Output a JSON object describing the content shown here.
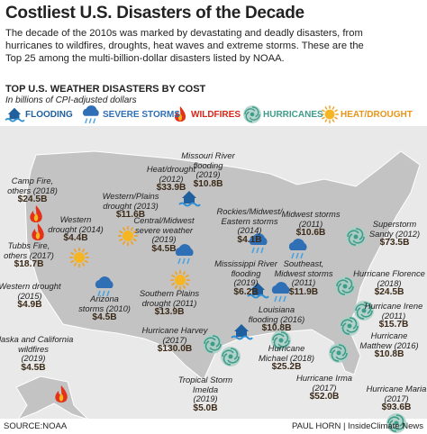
{
  "header": {
    "title": "Costliest U.S. Disasters of the Decade",
    "intro": [
      "The decade of the 2010s was marked by devastating and deadly disasters, from",
      "hurricanes to wildfires, droughts, heat waves and extreme storms. These are the",
      "Top 25 among the multi-billion-dollar disasters listed by NOAA."
    ]
  },
  "map": {
    "subtitle": "TOP U.S. WEATHER DISASTERS BY COST",
    "unit": "In billions of CPI-adjusted dollars",
    "legend": [
      "FLOODING",
      "SEVERE STORMS",
      "WILDFIRES",
      "HURRICANES",
      "HEAT/DROUGHT"
    ],
    "disasters": [
      {
        "name": [
          "Camp Fire,",
          "others (2018)"
        ],
        "cost": "$24.5B"
      },
      {
        "name": [
          "Western",
          "drought (2014)"
        ],
        "cost": "$4.4B"
      },
      {
        "name": [
          "Tubbs Fire,",
          "others (2017)"
        ],
        "cost": "$18.7B"
      },
      {
        "name": [
          "Western drought",
          "(2015)"
        ],
        "cost": "$4.9B"
      },
      {
        "name": [
          "Arizona",
          "storms (2010)"
        ],
        "cost": "$4.5B"
      },
      {
        "name": [
          "Heat/drought",
          "(2012)"
        ],
        "cost": "$33.9B"
      },
      {
        "name": [
          "Missouri River",
          "flooding",
          "(2019)"
        ],
        "cost": "$10.8B"
      },
      {
        "name": [
          "Western/Plains",
          "drought (2013)"
        ],
        "cost": "$11.6B"
      },
      {
        "name": [
          "Central/Midwest",
          "severe weather",
          "(2019)"
        ],
        "cost": "$4.5B"
      },
      {
        "name": [
          "Rockies/Midwest/",
          "Eastern storms",
          "(2014)"
        ],
        "cost": "$4.1B"
      },
      {
        "name": [
          "Midwest storms",
          "(2011)"
        ],
        "cost": "$10.6B"
      },
      {
        "name": [
          "Superstorm",
          "Sandy (2012)"
        ],
        "cost": "$73.5B"
      },
      {
        "name": [
          "Southern Plains",
          "drought (2011)"
        ],
        "cost": "$13.9B"
      },
      {
        "name": [
          "Mississippi River",
          "flooding",
          "(2019)"
        ],
        "cost": "$6.2B"
      },
      {
        "name": [
          "Southeast,",
          "Midwest storms",
          "(2011)"
        ],
        "cost": "$11.9B"
      },
      {
        "name": [
          "Hurricane Florence",
          "(2018)"
        ],
        "cost": "$24.5B"
      },
      {
        "name": [
          "Louisiana",
          "flooding (2016)"
        ],
        "cost": "$10.8B"
      },
      {
        "name": [
          "Hurricane Irene",
          "(2011)"
        ],
        "cost": "$15.7B"
      },
      {
        "name": [
          "Hurricane Harvey",
          "(2017)"
        ],
        "cost": "$130.0B"
      },
      {
        "name": [
          "Hurricane",
          "Matthew (2016)"
        ],
        "cost": "$10.8B"
      },
      {
        "name": [
          "Alaska and California",
          "wildfires",
          "(2019)"
        ],
        "cost": "$4.5B"
      },
      {
        "name": [
          "Tropical Storm",
          "Imelda",
          "(2019)"
        ],
        "cost": "$5.0B"
      },
      {
        "name": [
          "Hurricane",
          "Michael (2018)"
        ],
        "cost": "$25.2B"
      },
      {
        "name": [
          "Hurricane Irma",
          "(2017)"
        ],
        "cost": "$52.0B"
      },
      {
        "name": [
          "Hurricane Maria",
          "(2017)"
        ],
        "cost": "$93.6B"
      }
    ]
  },
  "footer": {
    "source": "SOURCE:NOAA",
    "credit": "PAUL HORN | InsideClimate News"
  }
}
